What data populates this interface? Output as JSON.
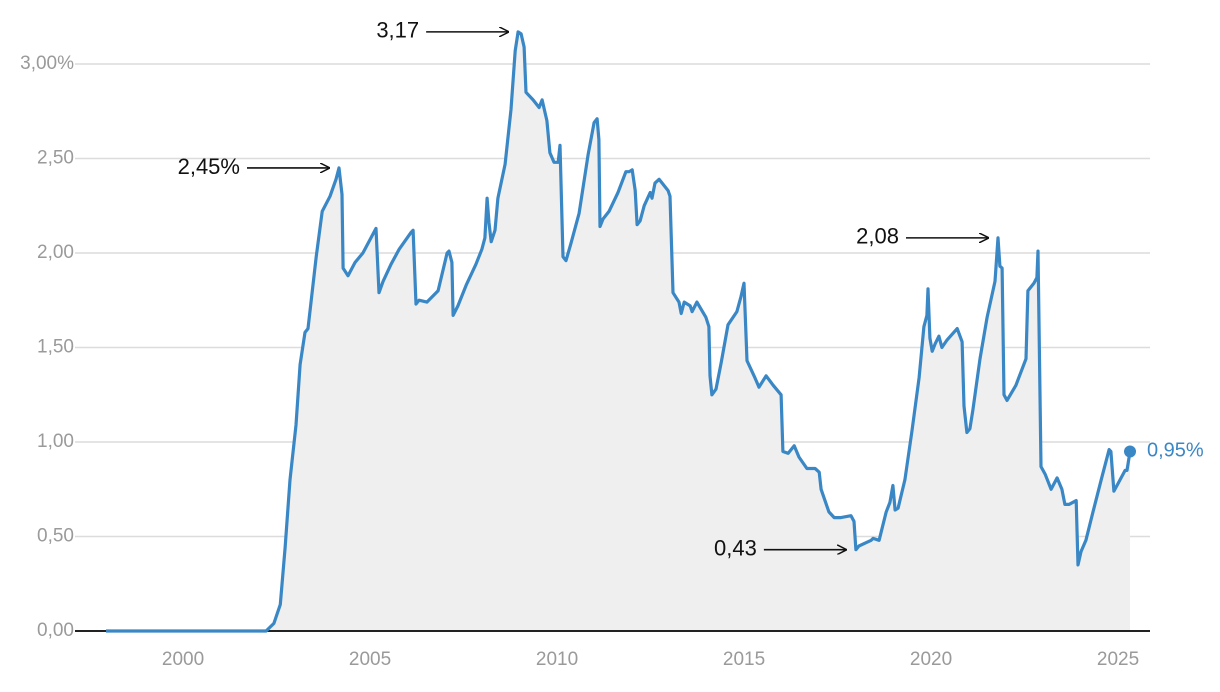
{
  "chart_data": {
    "type": "area",
    "x": [
      1997.94,
      2002.22,
      2002.43,
      2002.6,
      2002.73,
      2002.86,
      2003.02,
      2003.13,
      2003.26,
      2003.34,
      2003.56,
      2003.72,
      2003.93,
      2004.09,
      2004.17,
      2004.25,
      2004.28,
      2004.41,
      2004.6,
      2004.81,
      2005.16,
      2005.24,
      2005.35,
      2005.56,
      2005.78,
      2006.1,
      2006.15,
      2006.23,
      2006.31,
      2006.52,
      2006.82,
      2007.06,
      2007.11,
      2007.19,
      2007.22,
      2007.35,
      2007.57,
      2007.83,
      2007.99,
      2008.07,
      2008.13,
      2008.18,
      2008.24,
      2008.34,
      2008.42,
      2008.61,
      2008.77,
      2008.88,
      2008.96,
      2009.04,
      2009.12,
      2009.17,
      2009.36,
      2009.52,
      2009.6,
      2009.73,
      2009.81,
      2009.92,
      2010.03,
      2010.08,
      2010.16,
      2010.24,
      2010.37,
      2010.59,
      2010.83,
      2010.99,
      2011.07,
      2011.12,
      2011.15,
      2011.23,
      2011.39,
      2011.63,
      2011.84,
      2011.93,
      2012.01,
      2012.09,
      2012.14,
      2012.22,
      2012.33,
      2012.49,
      2012.54,
      2012.62,
      2012.73,
      2012.97,
      2013.02,
      2013.1,
      2013.26,
      2013.32,
      2013.4,
      2013.56,
      2013.61,
      2013.74,
      2013.98,
      2014.06,
      2014.09,
      2014.14,
      2014.25,
      2014.39,
      2014.57,
      2014.81,
      2014.92,
      2015.0,
      2015.08,
      2015.29,
      2015.4,
      2015.59,
      2015.78,
      2015.99,
      2016.04,
      2016.18,
      2016.34,
      2016.47,
      2016.68,
      2016.9,
      2017.01,
      2017.06,
      2017.27,
      2017.41,
      2017.59,
      2017.86,
      2017.94,
      2017.99,
      2018.07,
      2018.29,
      2018.4,
      2018.45,
      2018.61,
      2018.8,
      2018.9,
      2018.98,
      2019.04,
      2019.12,
      2019.3,
      2019.49,
      2019.68,
      2019.81,
      2019.89,
      2019.92,
      2019.97,
      2020.03,
      2020.11,
      2020.21,
      2020.29,
      2020.43,
      2020.7,
      2020.83,
      2020.88,
      2020.96,
      2021.04,
      2021.12,
      2021.31,
      2021.5,
      2021.71,
      2021.79,
      2021.84,
      2021.9,
      2021.95,
      2022.03,
      2022.27,
      2022.54,
      2022.59,
      2022.75,
      2022.83,
      2022.86,
      2022.94,
      2023.05,
      2023.21,
      2023.37,
      2023.5,
      2023.58,
      2023.69,
      2023.88,
      2023.93,
      2024.01,
      2024.14,
      2024.33,
      2024.55,
      2024.76,
      2024.81,
      2024.89,
      2025.0,
      2025.19,
      2025.24,
      2025.32
    ],
    "values": [
      0.0,
      0.0,
      0.04,
      0.14,
      0.44,
      0.8,
      1.09,
      1.41,
      1.58,
      1.6,
      1.98,
      2.22,
      2.3,
      2.39,
      2.45,
      2.31,
      1.92,
      1.88,
      1.95,
      2.0,
      2.13,
      1.79,
      1.85,
      1.94,
      2.02,
      2.11,
      2.12,
      1.73,
      1.75,
      1.74,
      1.8,
      2.0,
      2.01,
      1.95,
      1.67,
      1.72,
      1.83,
      1.94,
      2.02,
      2.08,
      2.29,
      2.16,
      2.06,
      2.12,
      2.29,
      2.47,
      2.76,
      3.07,
      3.17,
      3.16,
      3.09,
      2.85,
      2.81,
      2.77,
      2.81,
      2.7,
      2.53,
      2.48,
      2.48,
      2.57,
      1.98,
      1.96,
      2.05,
      2.21,
      2.52,
      2.69,
      2.71,
      2.6,
      2.14,
      2.18,
      2.22,
      2.32,
      2.43,
      2.43,
      2.44,
      2.33,
      2.15,
      2.17,
      2.25,
      2.32,
      2.29,
      2.37,
      2.39,
      2.33,
      2.3,
      1.79,
      1.74,
      1.68,
      1.74,
      1.72,
      1.69,
      1.74,
      1.66,
      1.61,
      1.35,
      1.25,
      1.28,
      1.42,
      1.62,
      1.69,
      1.77,
      1.84,
      1.43,
      1.34,
      1.29,
      1.35,
      1.3,
      1.25,
      0.95,
      0.94,
      0.98,
      0.92,
      0.86,
      0.86,
      0.84,
      0.75,
      0.63,
      0.6,
      0.6,
      0.61,
      0.58,
      0.43,
      0.45,
      0.47,
      0.48,
      0.49,
      0.48,
      0.63,
      0.68,
      0.77,
      0.64,
      0.65,
      0.8,
      1.06,
      1.34,
      1.61,
      1.67,
      1.81,
      1.55,
      1.48,
      1.52,
      1.56,
      1.5,
      1.54,
      1.6,
      1.53,
      1.19,
      1.05,
      1.07,
      1.17,
      1.44,
      1.66,
      1.85,
      2.08,
      1.93,
      1.92,
      1.25,
      1.22,
      1.3,
      1.44,
      1.8,
      1.84,
      1.87,
      2.01,
      0.87,
      0.83,
      0.75,
      0.81,
      0.75,
      0.67,
      0.67,
      0.69,
      0.35,
      0.42,
      0.48,
      0.63,
      0.8,
      0.96,
      0.95,
      0.74,
      0.78,
      0.85,
      0.85,
      0.95
    ],
    "color": "#3a87c6",
    "area_color": "#efefef",
    "end_label": "0,95%",
    "annotations": [
      {
        "text": "3,17",
        "x": 2008.96,
        "value": 3.17
      },
      {
        "text": "2,45%",
        "x": 2004.17,
        "value": 2.45
      },
      {
        "text": "2,08",
        "x": 2021.79,
        "value": 2.08
      },
      {
        "text": "0,43",
        "x": 2017.99,
        "value": 0.43
      }
    ],
    "xlim": [
      1997.9,
      2025.9
    ],
    "xticks": [
      2000,
      2005,
      2010,
      2015,
      2020,
      2025
    ],
    "ylim": [
      0,
      3.2
    ],
    "yticks": [
      {
        "value": 0,
        "label": "0,00"
      },
      {
        "value": 0.5,
        "label": "0,50"
      },
      {
        "value": 1,
        "label": "1,00"
      },
      {
        "value": 1.5,
        "label": "1,50"
      },
      {
        "value": 2,
        "label": "2,00"
      },
      {
        "value": 2.5,
        "label": "2,50"
      },
      {
        "value": 3,
        "label": "3,00%"
      }
    ],
    "grid": true
  }
}
